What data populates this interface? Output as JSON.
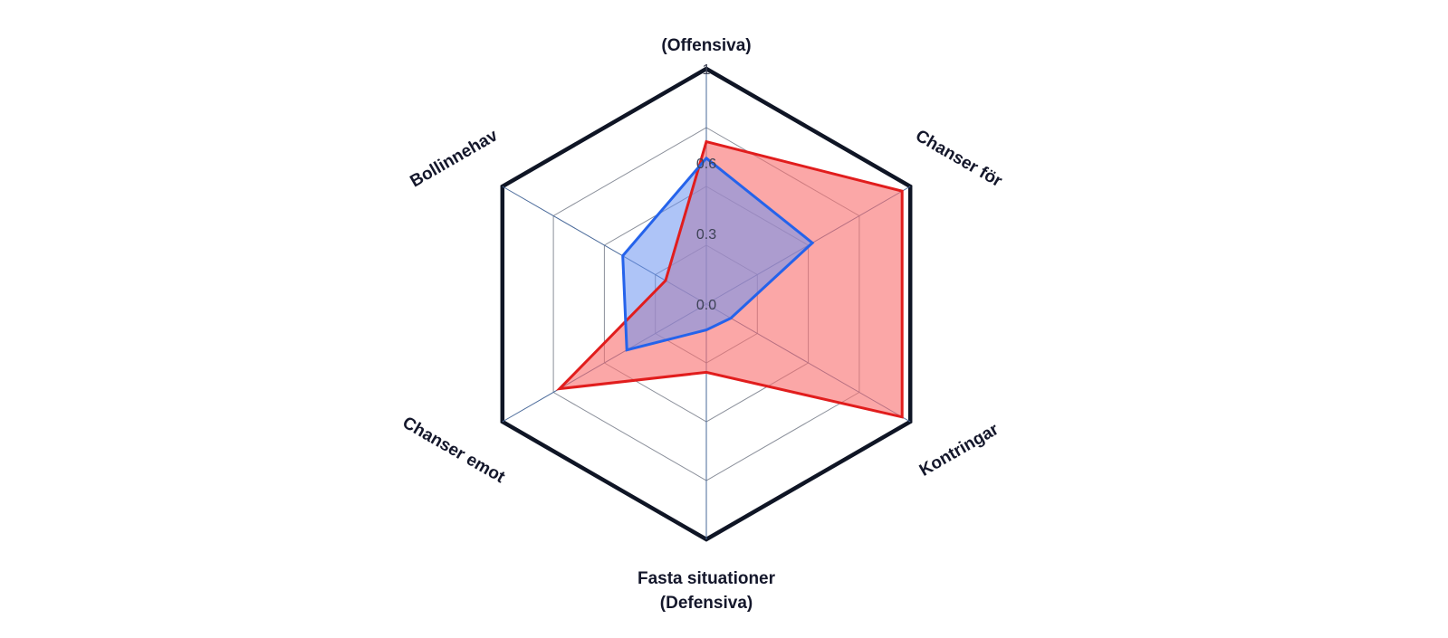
{
  "chart_data": {
    "type": "radar",
    "axes": [
      {
        "label": [
          "(Offensiva)"
        ]
      },
      {
        "label": [
          "Chanser för"
        ]
      },
      {
        "label": [
          "Kontringar"
        ]
      },
      {
        "label": [
          "Fasta situationer",
          "(Defensiva)"
        ]
      },
      {
        "label": [
          "Chanser emot"
        ]
      },
      {
        "label": [
          "Bollinnehav"
        ]
      }
    ],
    "rlim": [
      0,
      1
    ],
    "ticks": [
      "0.0",
      "0.3",
      "0.6",
      "1"
    ],
    "tick_values": [
      0,
      0.3,
      0.6,
      1
    ],
    "grid_levels": [
      0,
      0.25,
      0.5,
      0.75,
      1
    ],
    "grid": true,
    "series": [
      {
        "values": [
          0.69,
          0.96,
          0.96,
          0.29,
          0.72,
          0.2
        ],
        "color": "#e11d1d",
        "fill": "#f87171",
        "fill_opacity": 0.62
      },
      {
        "values": [
          0.62,
          0.52,
          0.12,
          0.11,
          0.39,
          0.41
        ],
        "color": "#2563eb",
        "fill": "#6b93f0",
        "fill_opacity": 0.55
      }
    ],
    "colors": {
      "outer_frame": "#0f1525",
      "inner_grid": "#8a8f9a",
      "spokes": "#4a6a9a",
      "axis_label": "#14172b",
      "tick_label": "#3d4255"
    }
  }
}
